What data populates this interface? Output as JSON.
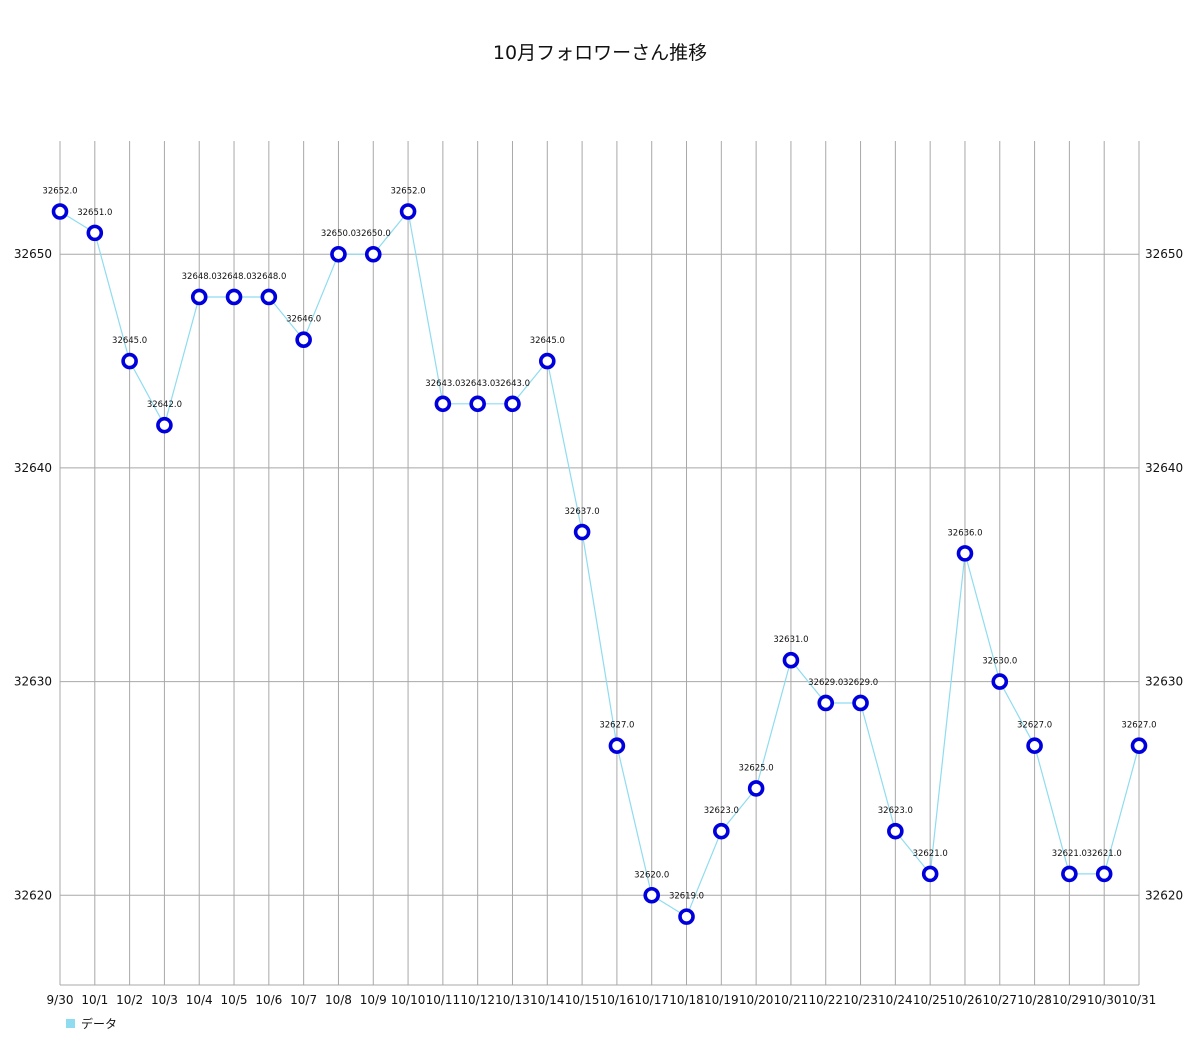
{
  "chart_data": {
    "type": "line",
    "title": "10月フォロワーさん推移",
    "xlabel": "",
    "ylabel": "",
    "categories": [
      "9/30",
      "10/1",
      "10/2",
      "10/3",
      "10/4",
      "10/5",
      "10/6",
      "10/7",
      "10/8",
      "10/9",
      "10/10",
      "10/11",
      "10/12",
      "10/13",
      "10/14",
      "10/15",
      "10/16",
      "10/17",
      "10/18",
      "10/19",
      "10/20",
      "10/21",
      "10/22",
      "10/23",
      "10/24",
      "10/25",
      "10/26",
      "10/27",
      "10/28",
      "10/29",
      "10/30",
      "10/31"
    ],
    "series": [
      {
        "name": "データ",
        "values": [
          32652,
          32651,
          32645,
          32642,
          32648,
          32648,
          32648,
          32646,
          32650,
          32650,
          32652,
          32643,
          32643,
          32643,
          32645,
          32637,
          32627,
          32620,
          32619,
          32623,
          32625,
          32631,
          32629,
          32629,
          32623,
          32621,
          32636,
          32630,
          32627,
          32621,
          32621,
          32627
        ],
        "labels": [
          "32652.0",
          "32651.0",
          "32645.0",
          "32642.0",
          "32648.0",
          "32648.0",
          "32648.0",
          "32646.0",
          "32650.0",
          "32650.0",
          "32652.0",
          "32643.0",
          "32643.0",
          "32643.0",
          "32645.0",
          "32637.0",
          "32627.0",
          "32620.0",
          "32619.0",
          "32623.0",
          "32625.0",
          "32631.0",
          "32629.0",
          "32629.0",
          "32623.0",
          "32621.0",
          "32636.0",
          "32630.0",
          "32627.0",
          "32621.0",
          "32621.0",
          "32627.0"
        ]
      }
    ],
    "yticks": [
      "32620",
      "32630",
      "32640",
      "32650"
    ],
    "ylim": [
      32615.8,
      32655.3
    ],
    "grid": true,
    "legend_position": "bottom-left",
    "colors": {
      "line": "#8fdcf0",
      "marker": "#0000dd",
      "marker_fill": "#ffffff",
      "grid": "#a8a8a8",
      "legend_swatch": "#8fdcf0"
    }
  }
}
